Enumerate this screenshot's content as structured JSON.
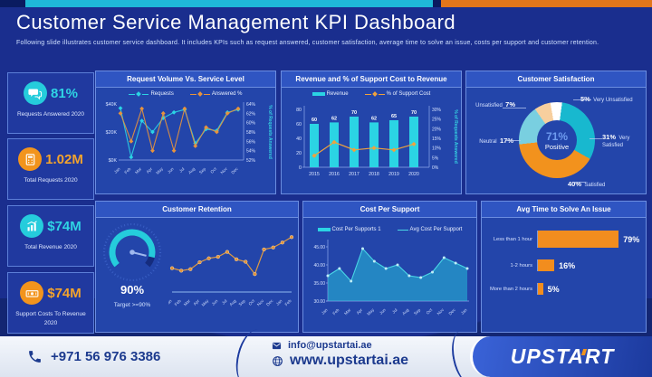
{
  "page": {
    "title": "Customer Service Management KPI Dashboard",
    "subtitle": "Following slide illustrates customer service dashboard. It includes KPIs such as request answered, customer satisfaction, average time to solve an issue, costs per support and customer retention."
  },
  "colors": {
    "accent_teal": "#1fb9d8",
    "accent_orange": "#e2761b",
    "bar_cyan": "#2bd4e4",
    "line_orange": "#f0a23c",
    "panel_blue": "#2345aa",
    "page_blue": "#1a2e8e",
    "footer_navy": "#1c3a8e"
  },
  "kpis": [
    {
      "value": "81%",
      "label": "Requests Answered 2020",
      "color": "teal",
      "icon": "chat-icon"
    },
    {
      "value": "1.02M",
      "label": "Total Requests 2020",
      "color": "orange",
      "icon": "calculator-icon"
    },
    {
      "value": "$74M",
      "label": "Total Revenue 2020",
      "color": "teal",
      "icon": "bar-chart-icon"
    },
    {
      "value": "$74M",
      "label": "Support Costs To Revenue 2020",
      "color": "orange",
      "icon": "money-icon"
    }
  ],
  "chart_data": [
    {
      "id": "request_volume",
      "type": "line",
      "title": "Request Volume Vs. Service Level",
      "categories": [
        "Jan",
        "Feb",
        "Mar",
        "Apr",
        "May",
        "Jun",
        "Jul",
        "Aug",
        "Sep",
        "Oct",
        "Nov",
        "Dec"
      ],
      "series": [
        {
          "name": "Requests",
          "axis": "left",
          "color": "#2bd4e4",
          "values": [
            37,
            2,
            28,
            20,
            30,
            34,
            36,
            12,
            22,
            21,
            34,
            36
          ]
        },
        {
          "name": "Answered %",
          "axis": "right",
          "color": "#e8933c",
          "values": [
            62,
            56,
            63,
            54,
            62,
            54,
            63,
            55,
            59,
            58,
            62,
            63
          ]
        }
      ],
      "left_ticks": [
        "$40K",
        "$20K",
        "$0K"
      ],
      "left_range": [
        0,
        40
      ],
      "right_ticks": [
        "64%",
        "62%",
        "60%",
        "58%",
        "56%",
        "54%",
        "52%"
      ],
      "right_range": [
        52,
        64
      ],
      "right_axis_label": "% of Requests Answered"
    },
    {
      "id": "revenue_support_cost",
      "type": "bar",
      "title": "Revenue and % of Support Cost to Revenue",
      "categories": [
        "2015",
        "2016",
        "2017",
        "2018",
        "2019",
        "2020"
      ],
      "series": [
        {
          "name": "Revenue",
          "type": "bar",
          "color": "#2bd4e4",
          "values": [
            60,
            62,
            70,
            62,
            65,
            70
          ]
        },
        {
          "name": "% of Support Cost",
          "type": "line",
          "color": "#f0a23c",
          "values": [
            6,
            13,
            9,
            10,
            9,
            12
          ]
        }
      ],
      "left_ticks": [
        "80",
        "60",
        "40",
        "20",
        "0"
      ],
      "left_range": [
        0,
        80
      ],
      "right_ticks": [
        "30%",
        "25%",
        "20%",
        "15%",
        "10%",
        "5%",
        "0%"
      ],
      "right_range": [
        0,
        30
      ],
      "right_axis_label": "% of Requests Answered"
    },
    {
      "id": "customer_satisfaction",
      "type": "pie",
      "title": "Customer Satisfaction",
      "center_value": "71%",
      "center_label": "Positive",
      "slices": [
        {
          "label": "Very Unsatisfied",
          "pct": 5,
          "color": "#ffffff"
        },
        {
          "label": "Very Satisfied",
          "pct": 31,
          "color": "#18b8cf"
        },
        {
          "label": "Satisfied",
          "pct": 40,
          "color": "#f2921d"
        },
        {
          "label": "Neutral",
          "pct": 17,
          "color": "#79cfe0"
        },
        {
          "label": "Unsatisfied",
          "pct": 7,
          "color": "#f7cf9e"
        }
      ]
    },
    {
      "id": "customer_retention",
      "type": "line",
      "title": "Customer Retention",
      "gauge": {
        "value": "90%",
        "target": "Target >=90%",
        "pct": 90
      },
      "categories": [
        "Jan",
        "Feb",
        "Mar",
        "Apr",
        "May",
        "Jun",
        "Jul",
        "Aug",
        "Sep",
        "Oct",
        "Nov",
        "Dec",
        "Jan",
        "Feb"
      ],
      "values": [
        88,
        87.5,
        87.8,
        89.2,
        90,
        90.3,
        91.3,
        89.8,
        89.3,
        86.8,
        91.8,
        92.2,
        93.2,
        94.3
      ],
      "range": [
        85,
        96
      ],
      "color": "#e09a40"
    },
    {
      "id": "cost_per_support",
      "type": "area",
      "title": "Cost Per Support",
      "legend": [
        "Cost Per Supports 1",
        "Avg Cost Per Support"
      ],
      "categories": [
        "Jan",
        "Feb",
        "Mar",
        "Apr",
        "May",
        "Jun",
        "Jul",
        "Aug",
        "Sep",
        "Oct",
        "Nov",
        "Dec",
        "Jan"
      ],
      "values": [
        37,
        39,
        35.5,
        44.5,
        41,
        39,
        40,
        37,
        36.5,
        38,
        42,
        40.5,
        39
      ],
      "ticks": [
        "45.00",
        "40.00",
        "35.00",
        "30.00"
      ],
      "tick_values": [
        45,
        40,
        35,
        30
      ],
      "range": [
        30,
        47
      ],
      "color": "#2bd4e4"
    },
    {
      "id": "avg_time",
      "type": "hbar",
      "title": "Avg Time to Solve An Issue",
      "categories": [
        "Less than 1 hour",
        "1-2 hours",
        "More than 2 hours"
      ],
      "values": [
        79,
        16,
        5
      ],
      "labels": [
        "79%",
        "16%",
        "5%"
      ],
      "color": "#f28d1e",
      "max": 100
    }
  ],
  "footer": {
    "phone": "+971 56 976 3386",
    "email": "info@upstartai.ae",
    "website": "www.upstartai.ae",
    "logo_prefix": "UPST",
    "logo_letter": "A",
    "logo_suffix": "RT"
  }
}
